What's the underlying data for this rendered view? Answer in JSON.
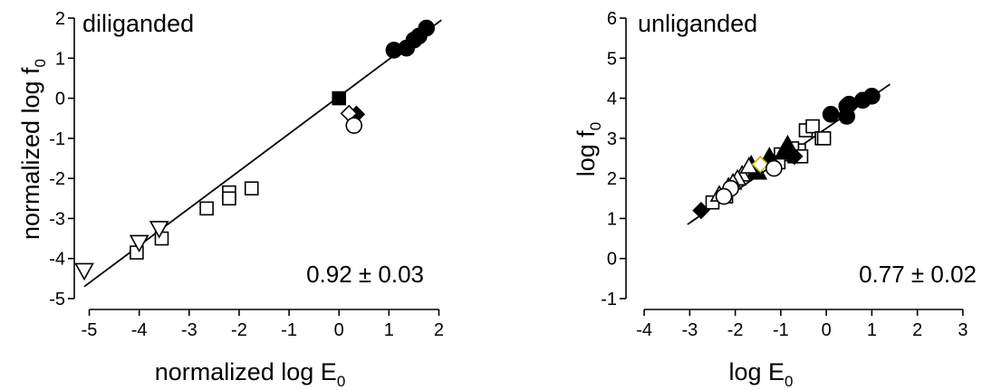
{
  "chart_data": [
    {
      "type": "scatter",
      "title": "diliganded",
      "xlabel": "normalized log E",
      "xlabel_sub": "0",
      "ylabel": "normalized log f",
      "ylabel_sub": "0",
      "slope_label": "0.92 ± 0.03",
      "xlim": [
        -5.3,
        2.1
      ],
      "ylim": [
        -5,
        2
      ],
      "xticks": [
        "-5",
        "-4",
        "-3",
        "-2",
        "-1",
        "0",
        "1",
        "2"
      ],
      "yticks": [
        "-5",
        "-4",
        "-3",
        "-2",
        "-1",
        "0",
        "1",
        "2"
      ],
      "fit_line": {
        "x": [
          -5.1,
          2.05
        ],
        "y": [
          -4.7,
          1.95
        ]
      },
      "series": [
        {
          "marker": "circle-filled",
          "x": [
            1.1,
            1.35,
            1.5,
            1.6,
            1.75
          ],
          "y": [
            1.2,
            1.25,
            1.45,
            1.55,
            1.75
          ]
        },
        {
          "marker": "square-filled",
          "x": [
            0.0
          ],
          "y": [
            0.0
          ]
        },
        {
          "marker": "diamond-filled",
          "x": [
            0.35
          ],
          "y": [
            -0.4
          ]
        },
        {
          "marker": "diamond-open",
          "x": [
            0.2
          ],
          "y": [
            -0.38
          ]
        },
        {
          "marker": "circle-open",
          "x": [
            0.3
          ],
          "y": [
            -0.68
          ]
        },
        {
          "marker": "square-open",
          "x": [
            -1.75,
            -2.2,
            -2.2,
            -2.65,
            -3.55,
            -4.05
          ],
          "y": [
            -2.25,
            -2.35,
            -2.5,
            -2.75,
            -3.5,
            -3.85
          ]
        },
        {
          "marker": "triangle-down-open",
          "x": [
            -5.1,
            -4.0,
            -3.6
          ],
          "y": [
            -4.3,
            -3.6,
            -3.25
          ]
        }
      ]
    },
    {
      "type": "scatter",
      "title": "unliganded",
      "xlabel": "log E",
      "xlabel_sub": "0",
      "ylabel": "log f",
      "ylabel_sub": "0",
      "slope_label": "0.77 ± 0.02",
      "xlim": [
        -4.4,
        3.4
      ],
      "ylim": [
        -1,
        6
      ],
      "xticks": [
        "-4",
        "-3",
        "-2",
        "-1",
        "0",
        "1",
        "2",
        "3"
      ],
      "yticks": [
        "-1",
        "0",
        "1",
        "2",
        "3",
        "4",
        "5",
        "6"
      ],
      "fit_line": {
        "x": [
          -3.05,
          1.4
        ],
        "y": [
          0.85,
          4.35
        ]
      },
      "series": [
        {
          "marker": "circle-filled",
          "x": [
            0.1,
            0.45,
            0.5,
            0.8,
            1.0,
            0.45
          ],
          "y": [
            3.6,
            3.8,
            3.85,
            3.95,
            4.05,
            3.55
          ]
        },
        {
          "marker": "square-open",
          "x": [
            -0.7,
            -0.6,
            -0.45,
            -0.3,
            -0.1,
            -0.05,
            -0.75,
            -1.0,
            -1.05,
            -2.2,
            -2.5,
            -0.55
          ],
          "y": [
            2.55,
            2.7,
            3.2,
            3.3,
            3.0,
            3.0,
            2.75,
            2.6,
            2.4,
            1.55,
            1.4,
            2.55
          ]
        },
        {
          "marker": "triangle-up-filled",
          "x": [
            -1.65,
            -1.5,
            -1.25,
            -0.95,
            -0.85,
            -1.55
          ],
          "y": [
            2.35,
            2.15,
            2.55,
            2.65,
            2.85,
            2.2
          ]
        },
        {
          "marker": "triangle-up-open",
          "x": [
            -2.35,
            -2.15,
            -1.85,
            -1.95,
            -1.7,
            -2.05
          ],
          "y": [
            1.6,
            1.8,
            2.1,
            2.0,
            2.3,
            1.9
          ]
        },
        {
          "marker": "diamond-filled",
          "x": [
            -2.75,
            -0.8,
            -0.7
          ],
          "y": [
            1.2,
            2.6,
            2.55
          ]
        },
        {
          "marker": "diamond-highlight",
          "color": "#c8b400",
          "x": [
            -1.45
          ],
          "y": [
            2.35
          ]
        },
        {
          "marker": "circle-open",
          "x": [
            -2.1,
            -1.15,
            -2.25
          ],
          "y": [
            1.75,
            2.25,
            1.55
          ]
        }
      ]
    }
  ]
}
